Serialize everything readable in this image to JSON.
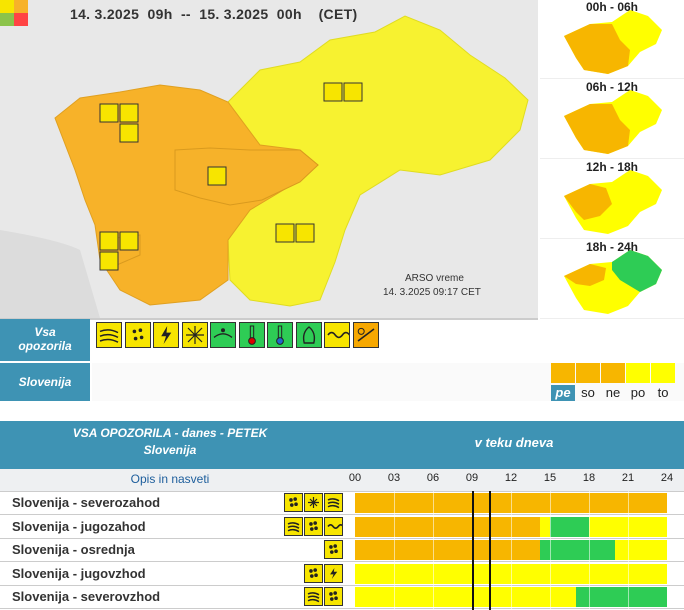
{
  "map": {
    "title": "14. 3.2025  09h  --  15. 3.2025  00h    (CET)",
    "credit_line1": "ARSO vreme",
    "credit_line2": "14. 3.2025  09:17 CET"
  },
  "side_maps": [
    {
      "label": "00h - 06h"
    },
    {
      "label": "06h - 12h"
    },
    {
      "label": "12h - 18h"
    },
    {
      "label": "18h - 24h"
    }
  ],
  "vsa_label": "Vsa\nopozorila",
  "icon_bar": [
    {
      "icon": "wind-icon",
      "color": "#f7e500"
    },
    {
      "icon": "rain-icon",
      "color": "#f7e500"
    },
    {
      "icon": "thunderstorm-icon",
      "color": "#f7e500"
    },
    {
      "icon": "snow-icon",
      "color": "#f7e500"
    },
    {
      "icon": "snow-rain-icon",
      "color": "#2ecc55"
    },
    {
      "icon": "high-temperature-icon",
      "color": "#2ecc55"
    },
    {
      "icon": "low-temperature-icon",
      "color": "#2ecc55"
    },
    {
      "icon": "fire-icon",
      "color": "#2ecc55"
    },
    {
      "icon": "coastal-icon",
      "color": "#f7e500"
    },
    {
      "icon": "flood-icon",
      "color": "#f7a800"
    }
  ],
  "slovenija_label": "Slovenija",
  "days": [
    {
      "label": "pe",
      "color": "#f7b600",
      "active": true
    },
    {
      "label": "so",
      "color": "#f7b600",
      "active": false
    },
    {
      "label": "ne",
      "color": "#f7b600",
      "active": false
    },
    {
      "label": "po",
      "color": "#ffff00",
      "active": false
    },
    {
      "label": "to",
      "color": "#ffff00",
      "active": false
    }
  ],
  "table": {
    "title_line1": "VSA OPOZORILA - danes - PETEK",
    "title_line2": "Slovenija",
    "right_title": "v teku dneva",
    "opis": "Opis in nasveti",
    "hours": [
      "00",
      "03",
      "06",
      "09",
      "12",
      "15",
      "18",
      "21",
      "24"
    ],
    "rows": [
      {
        "name": "Slovenija - severozahod",
        "icons": [
          "rain-icon",
          "snow-icon",
          "wind-icon"
        ],
        "segments": [
          {
            "from": 0,
            "to": 24,
            "color": "#f7b600"
          }
        ]
      },
      {
        "name": "Slovenija - jugozahod",
        "icons": [
          "wind-icon",
          "rain-icon",
          "coastal-icon"
        ],
        "segments": [
          {
            "from": 0,
            "to": 14.25,
            "color": "#f7b600"
          },
          {
            "from": 14.25,
            "to": 15,
            "color": "#ffff00"
          },
          {
            "from": 15,
            "to": 18,
            "color": "#2ecc55"
          },
          {
            "from": 18,
            "to": 24,
            "color": "#ffff00"
          }
        ]
      },
      {
        "name": "Slovenija - osrednja",
        "icons": [
          "rain-icon"
        ],
        "segments": [
          {
            "from": 0,
            "to": 14.25,
            "color": "#f7b600"
          },
          {
            "from": 14.25,
            "to": 20,
            "color": "#2ecc55"
          },
          {
            "from": 20,
            "to": 24,
            "color": "#ffff00"
          }
        ]
      },
      {
        "name": "Slovenija - jugovzhod",
        "icons": [
          "rain-icon",
          "thunderstorm-icon"
        ],
        "segments": [
          {
            "from": 0,
            "to": 24,
            "color": "#ffff00"
          }
        ]
      },
      {
        "name": "Slovenija - severovzhod",
        "icons": [
          "wind-icon",
          "rain-icon"
        ],
        "segments": [
          {
            "from": 0,
            "to": 17,
            "color": "#ffff00"
          },
          {
            "from": 17,
            "to": 24,
            "color": "#2ecc55"
          }
        ]
      }
    ],
    "current_time_hours": [
      9,
      10.3
    ]
  }
}
